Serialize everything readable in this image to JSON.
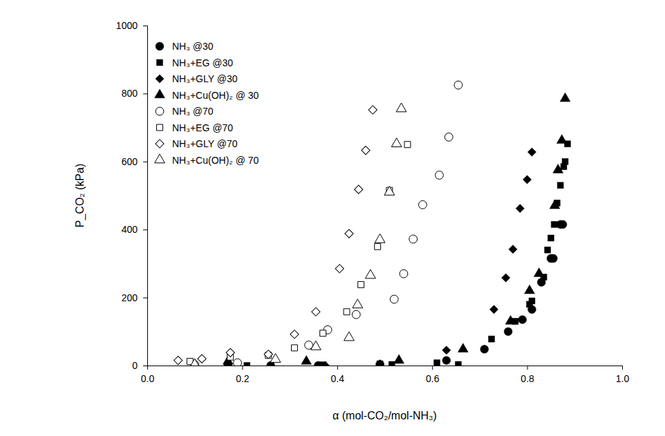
{
  "chart_data": {
    "type": "scatter",
    "x_label": "α (mol-CO₂/mol-NH₃)",
    "y_label": "P_CO₂ (kPa)",
    "xlim": [
      0,
      1
    ],
    "ylim": [
      0,
      1000
    ],
    "xticks": [
      {
        "value": 0,
        "label": "0.0"
      },
      0.2,
      0.4,
      0.6,
      0.8,
      {
        "value": 1,
        "label": "1.0"
      }
    ],
    "yticks": [
      0,
      200,
      400,
      600,
      800,
      1000
    ],
    "legend": "upper-left",
    "series": [
      {
        "name": "NH₃ @30",
        "color": "#000000",
        "marker": "circle",
        "x": [
          0.17,
          0.26,
          0.36,
          0.49,
          0.63,
          0.71,
          0.76,
          0.79,
          0.81,
          0.83,
          0.85,
          0.855,
          0.87,
          0.875
        ],
        "values": [
          0,
          0,
          0,
          3,
          15,
          48,
          100,
          135,
          165,
          245,
          315,
          315,
          415,
          415
        ]
      },
      {
        "name": "NH₃+EG @30",
        "color": "#000000",
        "marker": "square",
        "x": [
          0.21,
          0.37,
          0.49,
          0.515,
          0.61,
          0.655,
          0.725,
          0.775,
          0.805,
          0.81,
          0.835,
          0.843,
          0.85,
          0.857,
          0.863,
          0.87,
          0.877,
          0.88,
          0.885
        ],
        "values": [
          0,
          2,
          5,
          3,
          8,
          3,
          78,
          130,
          180,
          190,
          260,
          340,
          375,
          415,
          478,
          530,
          585,
          600,
          652
        ]
      },
      {
        "name": "NH₃+GLY @30",
        "color": "#000000",
        "marker": "diamond",
        "x": [
          0.375,
          0.49,
          0.63,
          0.73,
          0.755,
          0.77,
          0.785,
          0.8,
          0.81
        ],
        "values": [
          0,
          5,
          45,
          165,
          258,
          342,
          462,
          547,
          628
        ]
      },
      {
        "name": "NH₃+Cu(OH)₂ @ 30",
        "color": "#000000",
        "marker": "triangle",
        "x": [
          0.17,
          0.335,
          0.53,
          0.665,
          0.765,
          0.805,
          0.825,
          0.858,
          0.865,
          0.873,
          0.88
        ],
        "values": [
          12,
          12,
          15,
          48,
          130,
          220,
          270,
          470,
          575,
          662,
          785
        ]
      },
      {
        "name": "NH₃ @70",
        "color": "#000000",
        "marker": "circle-open",
        "x": [
          0.1,
          0.19,
          0.34,
          0.38,
          0.44,
          0.52,
          0.54,
          0.56,
          0.58,
          0.615,
          0.635,
          0.655
        ],
        "values": [
          3,
          8,
          60,
          105,
          150,
          195,
          270,
          372,
          473,
          560,
          672,
          825
        ]
      },
      {
        "name": "NH₃+EG @70",
        "color": "#000000",
        "marker": "square-open",
        "x": [
          0.09,
          0.175,
          0.255,
          0.31,
          0.37,
          0.42,
          0.45,
          0.485,
          0.51,
          0.548
        ],
        "values": [
          12,
          25,
          30,
          52,
          95,
          158,
          238,
          350,
          515,
          650
        ]
      },
      {
        "name": "NH₃+GLY @70",
        "color": "#000000",
        "marker": "diamond-open",
        "x": [
          0.065,
          0.115,
          0.175,
          0.255,
          0.31,
          0.355,
          0.405,
          0.425,
          0.445,
          0.46,
          0.475
        ],
        "values": [
          15,
          20,
          38,
          33,
          92,
          158,
          285,
          388,
          518,
          633,
          752
        ]
      },
      {
        "name": "NH₃+Cu(OH)₂ @ 70",
        "color": "#000000",
        "marker": "triangle-open",
        "x": [
          0.1,
          0.27,
          0.355,
          0.425,
          0.443,
          0.47,
          0.49,
          0.51,
          0.525,
          0.535
        ],
        "values": [
          3,
          18,
          55,
          82,
          178,
          265,
          370,
          510,
          652,
          755
        ]
      }
    ]
  }
}
